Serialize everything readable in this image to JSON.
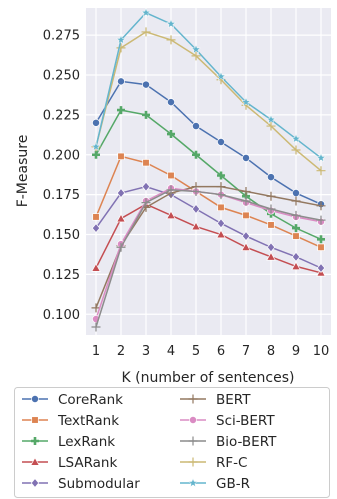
{
  "chart_data": {
    "type": "line",
    "title": "",
    "xlabel": "K (number of sentences)",
    "ylabel": "F-Measure",
    "x": [
      1,
      2,
      3,
      4,
      5,
      6,
      7,
      8,
      9,
      10
    ],
    "xlim": [
      0.6,
      10.4
    ],
    "ylim": [
      0.087,
      0.292
    ],
    "yticks": [
      0.1,
      0.125,
      0.15,
      0.175,
      0.2,
      0.225,
      0.25,
      0.275
    ],
    "ytick_labels": [
      "0.100",
      "0.125",
      "0.150",
      "0.175",
      "0.200",
      "0.225",
      "0.250",
      "0.275"
    ],
    "xtick_labels": [
      "1",
      "2",
      "3",
      "4",
      "5",
      "6",
      "7",
      "8",
      "9",
      "10"
    ],
    "grid": true,
    "background": "#eaeaf2",
    "legend_position": "below",
    "series": [
      {
        "name": "CoreRank",
        "color": "#4c72b0",
        "marker": "circle",
        "values": [
          0.22,
          0.246,
          0.244,
          0.233,
          0.218,
          0.208,
          0.198,
          0.186,
          0.176,
          0.169
        ]
      },
      {
        "name": "TextRank",
        "color": "#dd8452",
        "marker": "square",
        "values": [
          0.161,
          0.199,
          0.195,
          0.187,
          0.177,
          0.167,
          0.162,
          0.156,
          0.149,
          0.142
        ]
      },
      {
        "name": "LexRank",
        "color": "#55a868",
        "marker": "plus",
        "values": [
          0.2,
          0.228,
          0.225,
          0.213,
          0.2,
          0.187,
          0.174,
          0.163,
          0.154,
          0.147
        ]
      },
      {
        "name": "LSARank",
        "color": "#c44e52",
        "marker": "triangle",
        "values": [
          0.129,
          0.16,
          0.169,
          0.162,
          0.155,
          0.15,
          0.142,
          0.136,
          0.13,
          0.126
        ]
      },
      {
        "name": "Submodular",
        "color": "#8172b3",
        "marker": "diamond",
        "values": [
          0.154,
          0.176,
          0.18,
          0.175,
          0.166,
          0.157,
          0.149,
          0.142,
          0.136,
          0.129
        ]
      },
      {
        "name": "BERT",
        "color": "#937860",
        "marker": "plus-thin",
        "values": [
          0.104,
          0.143,
          0.167,
          0.176,
          0.18,
          0.18,
          0.177,
          0.174,
          0.171,
          0.168
        ]
      },
      {
        "name": "Sci-BERT",
        "color": "#da8bc3",
        "marker": "circle",
        "values": [
          0.097,
          0.144,
          0.171,
          0.179,
          0.177,
          0.175,
          0.17,
          0.165,
          0.161,
          0.158
        ]
      },
      {
        "name": "Bio-BERT",
        "color": "#8c8c8c",
        "marker": "plus-thin",
        "values": [
          0.092,
          0.142,
          0.17,
          0.178,
          0.177,
          0.175,
          0.171,
          0.166,
          0.162,
          0.159
        ]
      },
      {
        "name": "RF-C",
        "color": "#ccb974",
        "marker": "plus-thin",
        "values": [
          0.205,
          0.267,
          0.277,
          0.272,
          0.262,
          0.247,
          0.231,
          0.218,
          0.203,
          0.19
        ]
      },
      {
        "name": "GB-R",
        "color": "#64b5cd",
        "marker": "star",
        "values": [
          0.205,
          0.272,
          0.289,
          0.282,
          0.266,
          0.249,
          0.233,
          0.222,
          0.21,
          0.198
        ]
      }
    ]
  }
}
